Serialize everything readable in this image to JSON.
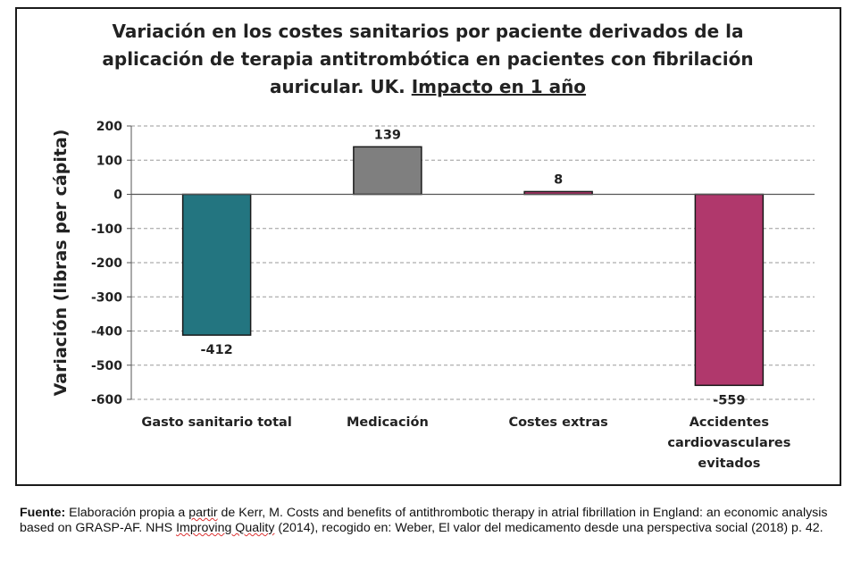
{
  "chart_data": {
    "type": "bar",
    "title_lines": [
      "Variación en los costes sanitarios por paciente derivados de la",
      "aplicación de terapia antitrombótica en pacientes con fibrilación"
    ],
    "title_line3_plain": "auricular. UK. ",
    "title_line3_underlined": "Impacto en 1 año",
    "ylabel": "Variación (libras per cápita)",
    "xlabel": "",
    "ylim": [
      -600,
      200
    ],
    "yticks": [
      200,
      100,
      0,
      -100,
      -200,
      -300,
      -400,
      -500,
      -600
    ],
    "grid": "horizontal-dashed",
    "categories": [
      [
        "Gasto sanitario total"
      ],
      [
        "Medicación"
      ],
      [
        "Costes extras"
      ],
      [
        "Accidentes",
        "cardiovasculares",
        "evitados"
      ]
    ],
    "values": [
      -412,
      139,
      8,
      -559
    ],
    "data_labels": [
      "-412",
      "139",
      "8",
      "-559"
    ],
    "colors": [
      "#237580",
      "#7f7f7f",
      "#b5356d",
      "#b0386c"
    ]
  },
  "source": {
    "label": "Fuente:",
    "text_part1": " Elaboración propia a ",
    "partir_word": "partir",
    "text_part2": " de Kerr, M. Costs and benefits of antithrombotic therapy in atrial fibrillation in England: an economic analysis based on GRASP-AF. NHS ",
    "improving_word": "Improving Quality",
    "text_part3": " (2014), recogido en: Weber, El valor del medicamento desde una perspectiva social (2018) p. 42."
  }
}
